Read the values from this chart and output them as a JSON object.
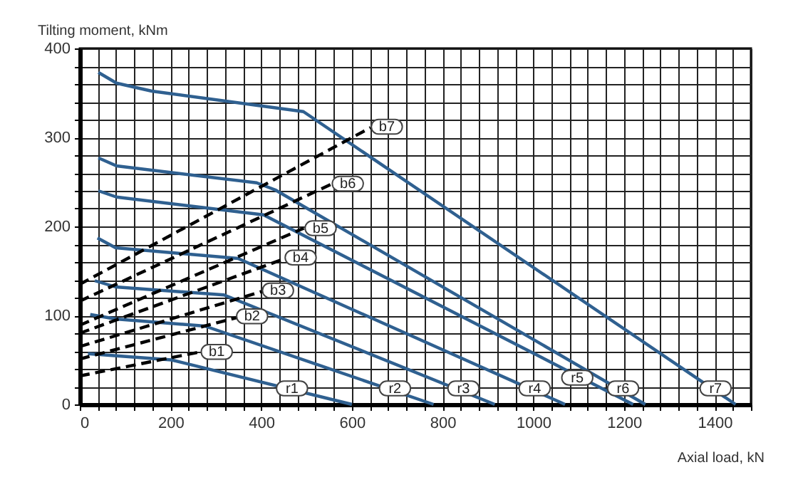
{
  "chart_data": {
    "type": "line",
    "xlabel": "Axial load, kN",
    "ylabel": "Tilting moment, kNm",
    "xlim": [
      0,
      1480
    ],
    "ylim": [
      0,
      400
    ],
    "xticks": [
      0,
      {
        "value": 40,
        "label": null
      },
      {
        "value": 80,
        "label": null
      },
      {
        "value": 120,
        "label": null
      },
      {
        "value": 160,
        "label": null
      },
      200,
      {
        "value": 240,
        "label": null
      },
      {
        "value": 280,
        "label": null
      },
      {
        "value": 320,
        "label": null
      },
      {
        "value": 360,
        "label": null
      },
      400,
      {
        "value": 440,
        "label": null
      },
      {
        "value": 480,
        "label": null
      },
      {
        "value": 520,
        "label": null
      },
      {
        "value": 560,
        "label": null
      },
      600,
      {
        "value": 640,
        "label": null
      },
      {
        "value": 680,
        "label": null
      },
      {
        "value": 720,
        "label": null
      },
      {
        "value": 760,
        "label": null
      },
      800,
      {
        "value": 840,
        "label": null
      },
      {
        "value": 880,
        "label": null
      },
      {
        "value": 920,
        "label": null
      },
      {
        "value": 960,
        "label": null
      },
      1000,
      {
        "value": 1040,
        "label": null
      },
      {
        "value": 1080,
        "label": null
      },
      {
        "value": 1120,
        "label": null
      },
      {
        "value": 1160,
        "label": null
      },
      1200,
      {
        "value": 1240,
        "label": null
      },
      {
        "value": 1280,
        "label": null
      },
      {
        "value": 1320,
        "label": null
      },
      {
        "value": 1360,
        "label": null
      },
      1400,
      {
        "value": 1440,
        "label": null
      },
      {
        "value": 1480,
        "label": null
      }
    ],
    "yticks": [
      0,
      {
        "value": 20,
        "label": null
      },
      {
        "value": 40,
        "label": null
      },
      {
        "value": 60,
        "label": null
      },
      {
        "value": 80,
        "label": null
      },
      100,
      {
        "value": 120,
        "label": null
      },
      {
        "value": 140,
        "label": null
      },
      {
        "value": 160,
        "label": null
      },
      {
        "value": 180,
        "label": null
      },
      200,
      {
        "value": 220,
        "label": null
      },
      {
        "value": 240,
        "label": null
      },
      {
        "value": 260,
        "label": null
      },
      {
        "value": 280,
        "label": null
      },
      300,
      {
        "value": 320,
        "label": null
      },
      {
        "value": 340,
        "label": null
      },
      {
        "value": 360,
        "label": null
      },
      {
        "value": 380,
        "label": null
      },
      400
    ],
    "grid": true,
    "marker": "none",
    "series": [
      {
        "color": "#2f6090",
        "line_style": "solid",
        "x": [
          18,
          202,
          600
        ],
        "values": [
          57,
          50,
          0
        ]
      },
      {
        "color": "#2f6090",
        "line_style": "solid",
        "x": [
          23,
          79,
          276,
          780
        ],
        "values": [
          101,
          96,
          88,
          0
        ]
      },
      {
        "color": "#2f6090",
        "line_style": "solid",
        "x": [
          33,
          79,
          318,
          915
        ],
        "values": [
          139,
          132,
          123,
          0
        ]
      },
      {
        "color": "#2f6090",
        "line_style": "solid",
        "x": [
          39,
          79,
          349,
          1070
        ],
        "values": [
          187,
          176,
          164,
          0
        ]
      },
      {
        "color": "#2f6090",
        "line_style": "solid",
        "x": [
          41,
          81,
          405,
          1220
        ],
        "values": [
          240,
          233,
          213,
          0
        ]
      },
      {
        "color": "#2f6090",
        "line_style": "solid",
        "x": [
          41,
          81,
          390,
          431,
          1247
        ],
        "values": [
          277,
          268,
          249,
          241,
          0
        ]
      },
      {
        "color": "#2f6090",
        "line_style": "solid",
        "x": [
          41,
          81,
          159,
          493,
          1446
        ],
        "values": [
          373,
          361,
          352,
          329,
          0
        ]
      },
      {
        "color": "#000000",
        "line_style": "dashed",
        "x": [
          0,
          265
        ],
        "values": [
          32,
          59
        ]
      },
      {
        "color": "#000000",
        "line_style": "dashed",
        "x": [
          0,
          349
        ],
        "values": [
          51,
          98
        ]
      },
      {
        "color": "#000000",
        "line_style": "dashed",
        "x": [
          0,
          402
        ],
        "values": [
          65,
          127
        ]
      },
      {
        "color": "#000000",
        "line_style": "dashed",
        "x": [
          0,
          453
        ],
        "values": [
          80,
          164
        ]
      },
      {
        "color": "#000000",
        "line_style": "dashed",
        "x": [
          0,
          494
        ],
        "values": [
          89,
          198
        ]
      },
      {
        "color": "#000000",
        "line_style": "dashed",
        "x": [
          0,
          557
        ],
        "values": [
          116,
          248
        ]
      },
      {
        "color": "#000000",
        "line_style": "dashed",
        "x": [
          0,
          641
        ],
        "values": [
          135,
          311
        ]
      }
    ],
    "annotations": [
      {
        "text": "r1",
        "x": 468,
        "y": 18
      },
      {
        "text": "r2",
        "x": 695,
        "y": 18
      },
      {
        "text": "r3",
        "x": 846,
        "y": 18
      },
      {
        "text": "r4",
        "x": 1003,
        "y": 18
      },
      {
        "text": "r5",
        "x": 1097,
        "y": 30
      },
      {
        "text": "r6",
        "x": 1198,
        "y": 18
      },
      {
        "text": "r7",
        "x": 1402,
        "y": 18
      },
      {
        "text": "b1",
        "x": 302,
        "y": 59
      },
      {
        "text": "b2",
        "x": 380,
        "y": 99
      },
      {
        "text": "b3",
        "x": 437,
        "y": 128
      },
      {
        "text": "b4",
        "x": 487,
        "y": 165
      },
      {
        "text": "b5",
        "x": 531,
        "y": 198
      },
      {
        "text": "b6",
        "x": 591,
        "y": 248
      },
      {
        "text": "b7",
        "x": 677,
        "y": 312
      }
    ]
  }
}
